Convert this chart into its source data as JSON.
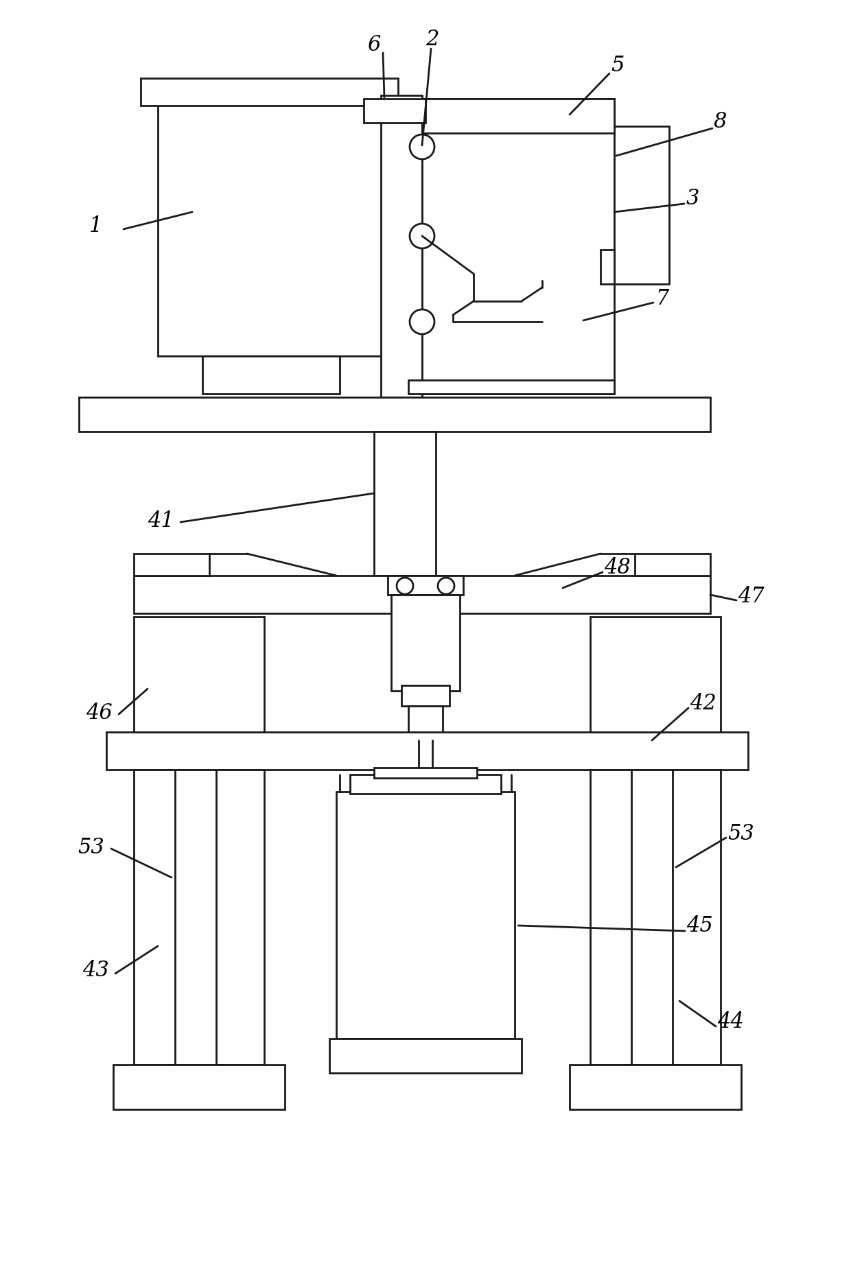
{
  "bg_color": "#ffffff",
  "line_color": "#1a1a1a",
  "lw": 2.0
}
